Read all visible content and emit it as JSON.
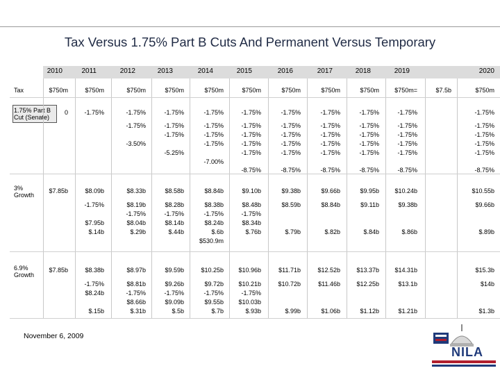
{
  "title": "Tax Versus 1.75% Part B Cuts And Permanent Versus Temporary",
  "years": [
    "2010",
    "2011",
    "2012",
    "2013",
    "2014",
    "2015",
    "2016",
    "2017",
    "2018",
    "2019",
    "2020"
  ],
  "row_labels": {
    "tax": "Tax",
    "cut_line1": "1.75% Part B",
    "cut_line2": "Cut (Senate)",
    "g3_line1": "3%",
    "g3_line2": "Growth",
    "g69_line1": "6.9%",
    "g69_line2": "Growth"
  },
  "tax_row": [
    "$750m",
    "$750m",
    "$750m",
    "$750m",
    "$750m",
    "$750m",
    "$750m",
    "$750m",
    "$750m",
    "$750m=",
    "$750m"
  ],
  "tax_extra": "$7.5b",
  "cut_row": {
    "r1": [
      "0",
      "-1.75%",
      "-1.75%",
      "-1.75%",
      "-1.75%",
      "-1.75%",
      "-1.75%",
      "-1.75%",
      "-1.75%",
      "-1.75%",
      "-1.75%"
    ],
    "r2": [
      "",
      "",
      "-1.75%",
      "-1.75%",
      "-1.75%",
      "-1.75%",
      "-1.75%",
      "-1.75%",
      "-1.75%",
      "-1.75%",
      "-1.75%"
    ],
    "r3": [
      "",
      "",
      "",
      "-1.75%",
      "-1.75%",
      "-1.75%",
      "-1.75%",
      "-1.75%",
      "-1.75%",
      "-1.75%",
      "-1.75%"
    ],
    "r4": [
      "",
      "",
      "-3.50%",
      "",
      "-1.75%",
      "-1.75%",
      "-1.75%",
      "-1.75%",
      "-1.75%",
      "-1.75%",
      "-1.75%"
    ],
    "r5": [
      "",
      "",
      "",
      "-5.25%",
      "",
      "-1.75%",
      "-1.75%",
      "-1.75%",
      "-1.75%",
      "-1.75%",
      "-1.75%"
    ],
    "r6": [
      "",
      "",
      "",
      "",
      "-7.00%",
      "",
      "",
      "",
      "",
      "",
      ""
    ],
    "r7": [
      "",
      "",
      "",
      "",
      "",
      "-8.75%",
      "-8.75%",
      "-8.75%",
      "-8.75%",
      "-8.75%",
      "-8.75%"
    ]
  },
  "growth3": {
    "r1": [
      "$7.85b",
      "$8.09b",
      "$8.33b",
      "$8.58b",
      "$8.84b",
      "$9.10b",
      "$9.38b",
      "$9.66b",
      "$9.95b",
      "$10.24b",
      "$10.55b"
    ],
    "r2": [
      "",
      "-1.75%",
      "$8.19b",
      "$8.28b",
      "$8.38b",
      "$8.48b",
      "$8.59b",
      "$8.84b",
      "$9.11b",
      "$9.38b",
      "$9.66b"
    ],
    "r3": [
      "",
      "",
      "-1.75%",
      "-1.75%",
      "-1.75%",
      "-1.75%",
      "",
      "",
      "",
      "",
      ""
    ],
    "r4": [
      "",
      "$7.95b",
      "$8.04b",
      "$8.14b",
      "$8.24b",
      "$8.34b",
      "",
      "",
      "",
      "",
      ""
    ],
    "r5": [
      "",
      "$.14b",
      "$.29b",
      "$.44b",
      "$.6b",
      "$.76b",
      "$.79b",
      "$.82b",
      "$.84b",
      "$.86b",
      "$.89b"
    ],
    "r6": [
      "",
      "",
      "",
      "",
      "$530.9m",
      "",
      "",
      "",
      "",
      "",
      ""
    ]
  },
  "growth69": {
    "r1": [
      "$7.85b",
      "$8.38b",
      "$8.97b",
      "$9.59b",
      "$10.25b",
      "$10.96b",
      "$11.71b",
      "$12.52b",
      "$13.37b",
      "$14.31b",
      "$15.3b"
    ],
    "r2": [
      "",
      "-1.75%",
      "$8.81b",
      "$9.26b",
      "$9.72b",
      "$10.21b",
      "$10.72b",
      "$11.46b",
      "$12.25b",
      "$13.1b",
      "$14b"
    ],
    "r3": [
      "",
      "$8.24b",
      "-1.75%",
      "-1.75%",
      "-1.75%",
      "-1.75%",
      "",
      "",
      "",
      "",
      ""
    ],
    "r4": [
      "",
      "",
      "$8.66b",
      "$9.09b",
      "$9.55b",
      "$10.03b",
      "",
      "",
      "",
      "",
      ""
    ],
    "r5": [
      "",
      "$.15b",
      "$.31b",
      "$.5b",
      "$.7b",
      "$.93b",
      "$.99b",
      "$1.06b",
      "$1.12b",
      "$1.21b",
      "$1.3b"
    ]
  },
  "date": "November 6, 2009",
  "logo_text": "NILA"
}
